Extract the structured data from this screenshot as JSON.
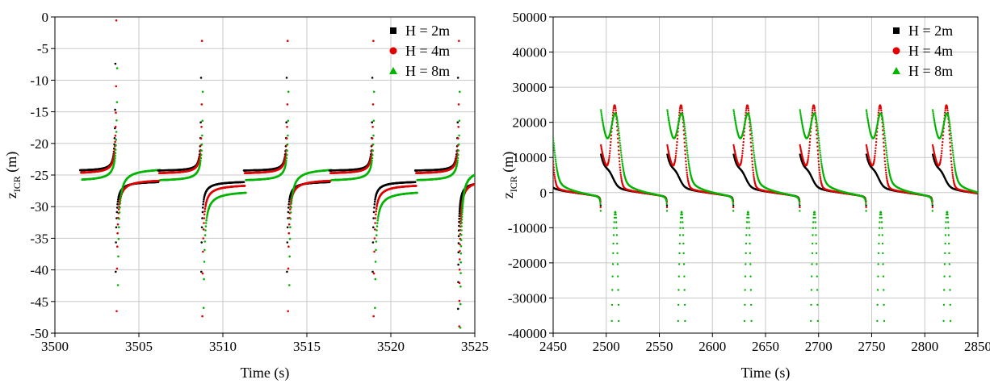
{
  "chart_data": [
    {
      "type": "scatter",
      "xlabel": "Time (s)",
      "ylabel_main": "z",
      "ylabel_sub": "ICR",
      "ylabel_unit": " (m)",
      "xlim": [
        3500,
        3525
      ],
      "ylim": [
        -50,
        0
      ],
      "xticks": [
        3500,
        3505,
        3510,
        3515,
        3520,
        3525
      ],
      "yticks": [
        0,
        -5,
        -10,
        -15,
        -20,
        -25,
        -30,
        -35,
        -40,
        -45,
        -50
      ],
      "grid": true,
      "legend_position": "top-right",
      "series": [
        {
          "name": "H = 2m",
          "color": "#000000",
          "marker": "square"
        },
        {
          "name": "H = 4m",
          "color": "#e00000",
          "marker": "circle"
        },
        {
          "name": "H = 8m",
          "color": "#00b400",
          "marker": "triangle"
        }
      ],
      "behavior": {
        "period": 5.1,
        "first_jump": 3503.6,
        "blocks": [
          {
            "start_offset": 0.0,
            "end_offset": 2.55,
            "base": [
              -24.5,
              -25.0,
              -26.2
            ],
            "upper": true
          },
          {
            "start_offset": 2.55,
            "end_offset": 5.1,
            "base": [
              -24.8,
              -24.3,
              -23.6
            ],
            "upper": false
          }
        ]
      }
    },
    {
      "type": "scatter",
      "xlabel": "Time (s)",
      "ylabel_main": "z",
      "ylabel_sub": "ICR",
      "ylabel_unit": " (m)",
      "xlim": [
        2450,
        2850
      ],
      "ylim": [
        -40000,
        50000
      ],
      "xticks": [
        2450,
        2500,
        2550,
        2600,
        2650,
        2700,
        2750,
        2800,
        2850
      ],
      "yticks": [
        50000,
        40000,
        30000,
        20000,
        10000,
        0,
        -10000,
        -20000,
        -30000,
        -40000
      ],
      "grid": true,
      "legend_position": "top-right",
      "series": [
        {
          "name": "H = 2m",
          "color": "#000000",
          "marker": "square"
        },
        {
          "name": "H = 4m",
          "color": "#e00000",
          "marker": "circle"
        },
        {
          "name": "H = 8m",
          "color": "#00b400",
          "marker": "triangle"
        }
      ],
      "behavior": {
        "period": 62.5,
        "first_jump": 2495,
        "peaks_4m": 30000,
        "peaks_8m": 30000
      }
    }
  ]
}
